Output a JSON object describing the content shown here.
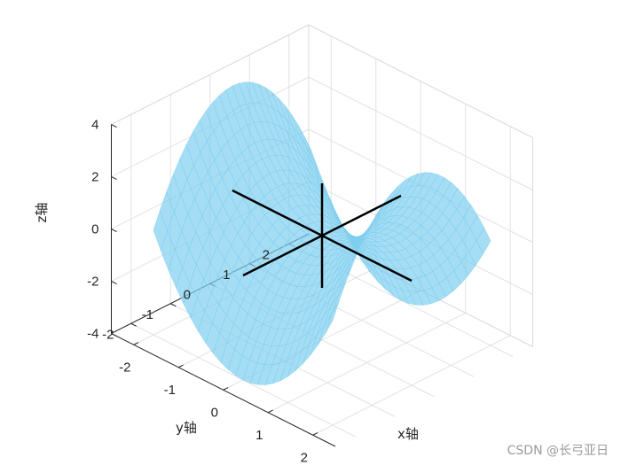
{
  "chart_data": {
    "type": "surface",
    "title": "",
    "xlabel": "x轴",
    "ylabel": "y轴",
    "zlabel": "z轴",
    "xlim": [
      -2.5,
      2.5
    ],
    "ylim": [
      -2.5,
      2.5
    ],
    "zlim": [
      -4,
      4
    ],
    "x_ticks": [
      -2,
      -1,
      0,
      1,
      2
    ],
    "y_ticks": [
      -2,
      -1,
      0,
      1,
      2
    ],
    "z_ticks": [
      -4,
      -2,
      0,
      2,
      4
    ],
    "x_tick_labels": [
      "-2",
      "-1",
      "0",
      "1",
      "2"
    ],
    "y_tick_labels": [
      "-2",
      "-1",
      "0",
      "1",
      "2"
    ],
    "z_tick_labels": [
      "-4",
      "-2",
      "0",
      "2",
      "4"
    ],
    "grid": true,
    "surface": {
      "function": "z = x^2 - y^2",
      "domain": [
        [
          -2,
          2
        ],
        [
          -2,
          2
        ]
      ],
      "color": "#7fcfef",
      "opacity": 0.7
    },
    "lines": [
      {
        "from": [
          -2,
          0,
          0
        ],
        "to": [
          2,
          0,
          0
        ],
        "color": "#000000"
      },
      {
        "from": [
          0,
          -2,
          0
        ],
        "to": [
          0,
          2,
          0
        ],
        "color": "#000000"
      },
      {
        "from": [
          0,
          0,
          -2
        ],
        "to": [
          0,
          0,
          2
        ],
        "color": "#000000"
      }
    ]
  },
  "watermark": "CSDN @长弓亚日"
}
